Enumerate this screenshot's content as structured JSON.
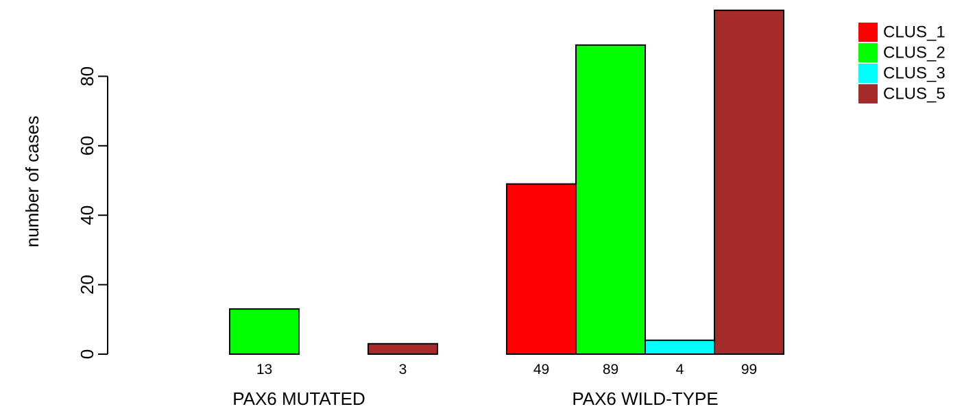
{
  "chart_data": {
    "type": "bar",
    "categories": [
      "PAX6 MUTATED",
      "PAX6 WILD-TYPE"
    ],
    "series": [
      {
        "name": "CLUS_1",
        "color": "#ff0000",
        "values": [
          0,
          49
        ]
      },
      {
        "name": "CLUS_2",
        "color": "#00ff00",
        "values": [
          13,
          89
        ]
      },
      {
        "name": "CLUS_3",
        "color": "#00ffff",
        "values": [
          0,
          4
        ]
      },
      {
        "name": "CLUS_5",
        "color": "#a52a2a",
        "values": [
          3,
          99
        ]
      }
    ],
    "bar_labels": [
      [
        "",
        "13",
        "",
        "3"
      ],
      [
        "49",
        "89",
        "4",
        "99"
      ]
    ],
    "title": "",
    "xlabel": "",
    "ylabel": "number of cases",
    "ylim": [
      0,
      100
    ],
    "yticks": [
      0,
      20,
      40,
      60,
      80
    ],
    "ytick_labels": [
      "0",
      "20",
      "40",
      "60",
      "80"
    ],
    "grid": false,
    "legend_position": "top-right"
  }
}
